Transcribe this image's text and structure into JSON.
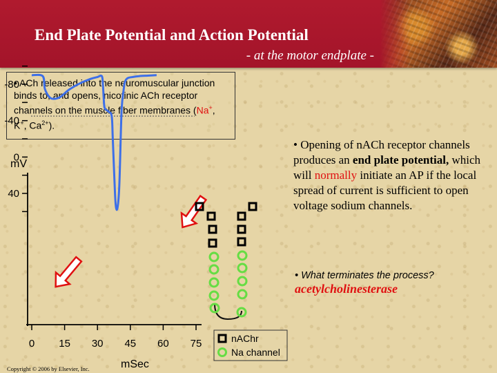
{
  "header": {
    "title": "End Plate Potential and Action Potential",
    "subtitle": "- at the motor endplate -"
  },
  "box": {
    "bullet": "•",
    "text_before": "ACh released into the neuromuscular junction binds to, and opens, nicotinic ACh receptor channels on the muscle fiber membranes (",
    "na": "Na",
    "na_sup": "+",
    "sep1": ", K",
    "k_sup": "+",
    "sep2": ", Ca",
    "ca_sup": "2+",
    "text_after": ")."
  },
  "right": {
    "bullet": "•",
    "p1": "Opening of nACh receptor channels produces an",
    "bold": "end plate potential,",
    "p2": "which will",
    "red": "normally",
    "p3": "initiate an AP if the local spread of current is sufficient to open voltage sodium channels."
  },
  "question": {
    "bullet": "•",
    "text": "What terminates the process?",
    "answer": "acetylcholinesterase"
  },
  "chart": {
    "y_unit": "mV",
    "x_unit": "mSec",
    "y_ticks": [
      "40",
      "0",
      "-40",
      "-80"
    ],
    "x_ticks": [
      "0",
      "15",
      "30",
      "45",
      "60",
      "75"
    ],
    "colors": {
      "trace": "#3d6fe8",
      "arrow": "#e01010",
      "threshold": "#555555"
    }
  },
  "chart_data": {
    "type": "line",
    "xlabel": "mSec",
    "ylabel": "mV",
    "xlim": [
      0,
      75
    ],
    "ylim": [
      -100,
      60
    ],
    "series": [
      {
        "x": [
          0,
          5,
          6,
          8,
          10,
          13,
          17,
          22,
          27,
          30,
          32,
          32.5,
          33,
          33.5,
          35,
          36.5,
          37,
          38,
          38.5,
          39.2,
          40,
          41,
          42,
          42.5,
          43,
          44,
          46,
          49,
          53,
          57
        ],
        "values": [
          -90,
          -89,
          -75,
          -66,
          -64,
          -66,
          -74,
          -81,
          -86,
          -88,
          -89,
          -79,
          -59,
          -53,
          -50,
          -45,
          -20,
          40,
          56,
          55,
          30,
          -50,
          -75,
          -82,
          -85,
          -87,
          -88,
          -89,
          -89.5,
          -90
        ]
      }
    ],
    "threshold_mV": -45
  },
  "legend": {
    "nachr": "nAChr",
    "na_channel": "Na channel"
  },
  "copyright": "Copyright © 2006 by Elsevier, Inc."
}
